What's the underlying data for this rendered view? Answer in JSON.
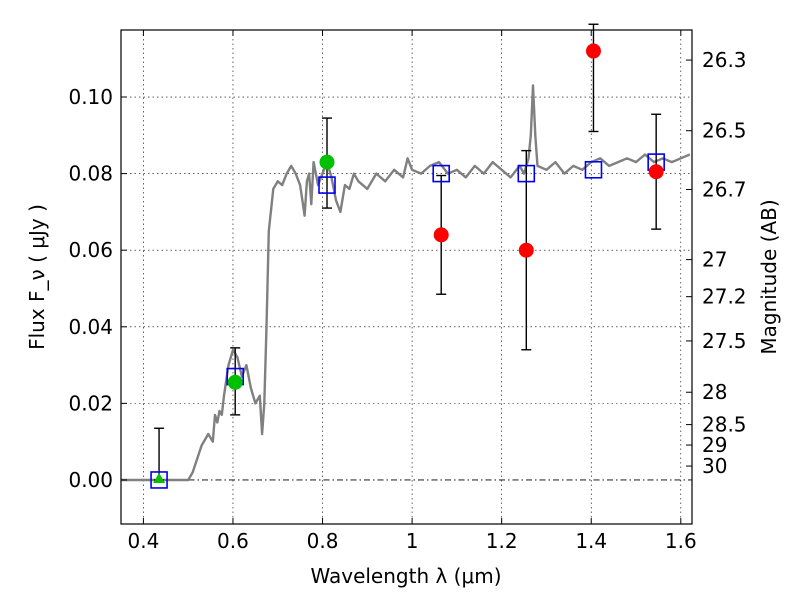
{
  "chart_data": {
    "type": "scatter",
    "xlabel": "Wavelength  λ (μm)",
    "ylabel": "Flux  F_ν  ( μJy )",
    "y2label": "Magnitude (AB)",
    "xlim": [
      0.35,
      1.625
    ],
    "ylim": [
      -0.0115,
      0.1175
    ],
    "xticks": [
      "0.4",
      "0.6",
      "0.8",
      "1",
      "1.2",
      "1.4",
      "1.6"
    ],
    "xtick_values": [
      0.4,
      0.6,
      0.8,
      1.0,
      1.2,
      1.4,
      1.6
    ],
    "yticks": [
      "0.00",
      "0.02",
      "0.04",
      "0.06",
      "0.08",
      "0.10"
    ],
    "ytick_values": [
      0.0,
      0.02,
      0.04,
      0.06,
      0.08,
      0.1
    ],
    "y2ticks": [
      "26.3",
      "26.5",
      "26.7",
      "27",
      "27.2",
      "27.5",
      "28",
      "28.5",
      "29",
      "30"
    ],
    "y2tick_values": [
      26.3,
      26.5,
      26.7,
      27.0,
      27.2,
      27.5,
      28.0,
      28.5,
      29.0,
      30.0
    ],
    "grid": true,
    "zero_line": true,
    "colors": {
      "model": "#808080",
      "observed_red": "#ff0000",
      "observed_green": "#00c000",
      "model_box": "#0000ee",
      "errorbar": "#000000"
    },
    "series": [
      {
        "kind": "line",
        "x": [
          0.35,
          0.5,
          0.51,
          0.53,
          0.545,
          0.555,
          0.56,
          0.565,
          0.57,
          0.575,
          0.58,
          0.59,
          0.6,
          0.61,
          0.62,
          0.63,
          0.64,
          0.65,
          0.66,
          0.665,
          0.67,
          0.675,
          0.68,
          0.69,
          0.7,
          0.71,
          0.72,
          0.73,
          0.74,
          0.75,
          0.755,
          0.76,
          0.765,
          0.77,
          0.775,
          0.78,
          0.79,
          0.8,
          0.81,
          0.82,
          0.83,
          0.84,
          0.85,
          0.86,
          0.87,
          0.88,
          0.9,
          0.92,
          0.94,
          0.96,
          0.98,
          0.99,
          1.0,
          1.02,
          1.04,
          1.06,
          1.08,
          1.1,
          1.12,
          1.14,
          1.16,
          1.18,
          1.2,
          1.22,
          1.24,
          1.25,
          1.26,
          1.265,
          1.27,
          1.275,
          1.28,
          1.3,
          1.32,
          1.34,
          1.36,
          1.38,
          1.4,
          1.42,
          1.44,
          1.46,
          1.48,
          1.5,
          1.52,
          1.54,
          1.56,
          1.58,
          1.6,
          1.62
        ],
        "y": [
          0.0,
          0.0,
          0.002,
          0.009,
          0.012,
          0.01,
          0.017,
          0.015,
          0.018,
          0.017,
          0.022,
          0.03,
          0.034,
          0.032,
          0.027,
          0.03,
          0.024,
          0.02,
          0.022,
          0.012,
          0.02,
          0.04,
          0.065,
          0.076,
          0.078,
          0.077,
          0.08,
          0.082,
          0.08,
          0.077,
          0.073,
          0.069,
          0.078,
          0.08,
          0.072,
          0.083,
          0.077,
          0.08,
          0.083,
          0.079,
          0.073,
          0.07,
          0.077,
          0.076,
          0.08,
          0.078,
          0.076,
          0.08,
          0.078,
          0.081,
          0.079,
          0.084,
          0.081,
          0.08,
          0.082,
          0.083,
          0.08,
          0.081,
          0.079,
          0.082,
          0.08,
          0.083,
          0.081,
          0.079,
          0.082,
          0.08,
          0.084,
          0.09,
          0.103,
          0.09,
          0.082,
          0.081,
          0.083,
          0.08,
          0.082,
          0.081,
          0.083,
          0.084,
          0.082,
          0.083,
          0.084,
          0.083,
          0.085,
          0.083,
          0.084,
          0.083,
          0.084,
          0.085
        ]
      },
      {
        "kind": "squares",
        "x": [
          0.435,
          0.605,
          0.81,
          1.065,
          1.255,
          1.405,
          1.545
        ],
        "y": [
          0.0,
          0.027,
          0.077,
          0.08,
          0.08,
          0.081,
          0.083
        ]
      },
      {
        "kind": "points_red",
        "x": [
          1.065,
          1.255,
          1.405,
          1.545
        ],
        "y": [
          0.064,
          0.06,
          0.112,
          0.0805
        ],
        "yerr_low": [
          0.0485,
          0.034,
          0.091,
          0.0655
        ],
        "yerr_high": [
          0.0795,
          0.086,
          0.119,
          0.0955
        ]
      },
      {
        "kind": "points_green",
        "x": [
          0.605,
          0.81
        ],
        "y": [
          0.0255,
          0.083
        ],
        "yerr_low": [
          0.017,
          0.071
        ],
        "yerr_high": [
          0.0345,
          0.0945
        ]
      },
      {
        "kind": "triangle_green",
        "x": [
          0.435
        ],
        "y": [
          0.0
        ],
        "yerr_low": [
          0.0
        ],
        "yerr_high": [
          0.0135
        ]
      }
    ]
  }
}
